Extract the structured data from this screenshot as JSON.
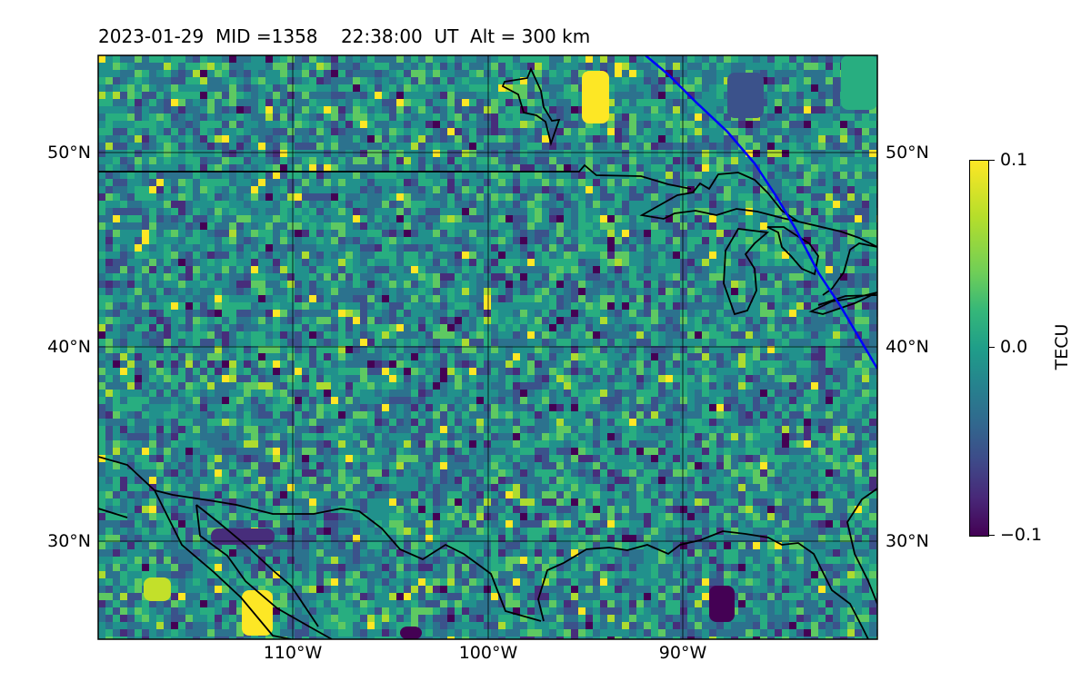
{
  "header": {
    "title": "2023-01-29  MID =1358    22:38:00  UT  Alt = 300 km"
  },
  "map": {
    "lat_labels": [
      "50°N",
      "40°N",
      "30°N"
    ],
    "lon_labels": [
      "110°W",
      "100°W",
      "90°W"
    ],
    "track_color": "#0000ff",
    "coastline_color": "#000000",
    "colormap": "viridis"
  },
  "colorbar": {
    "title": "TECU",
    "max_label": "0.1",
    "mid_label": "0.0",
    "min_label": "−0.1"
  }
}
